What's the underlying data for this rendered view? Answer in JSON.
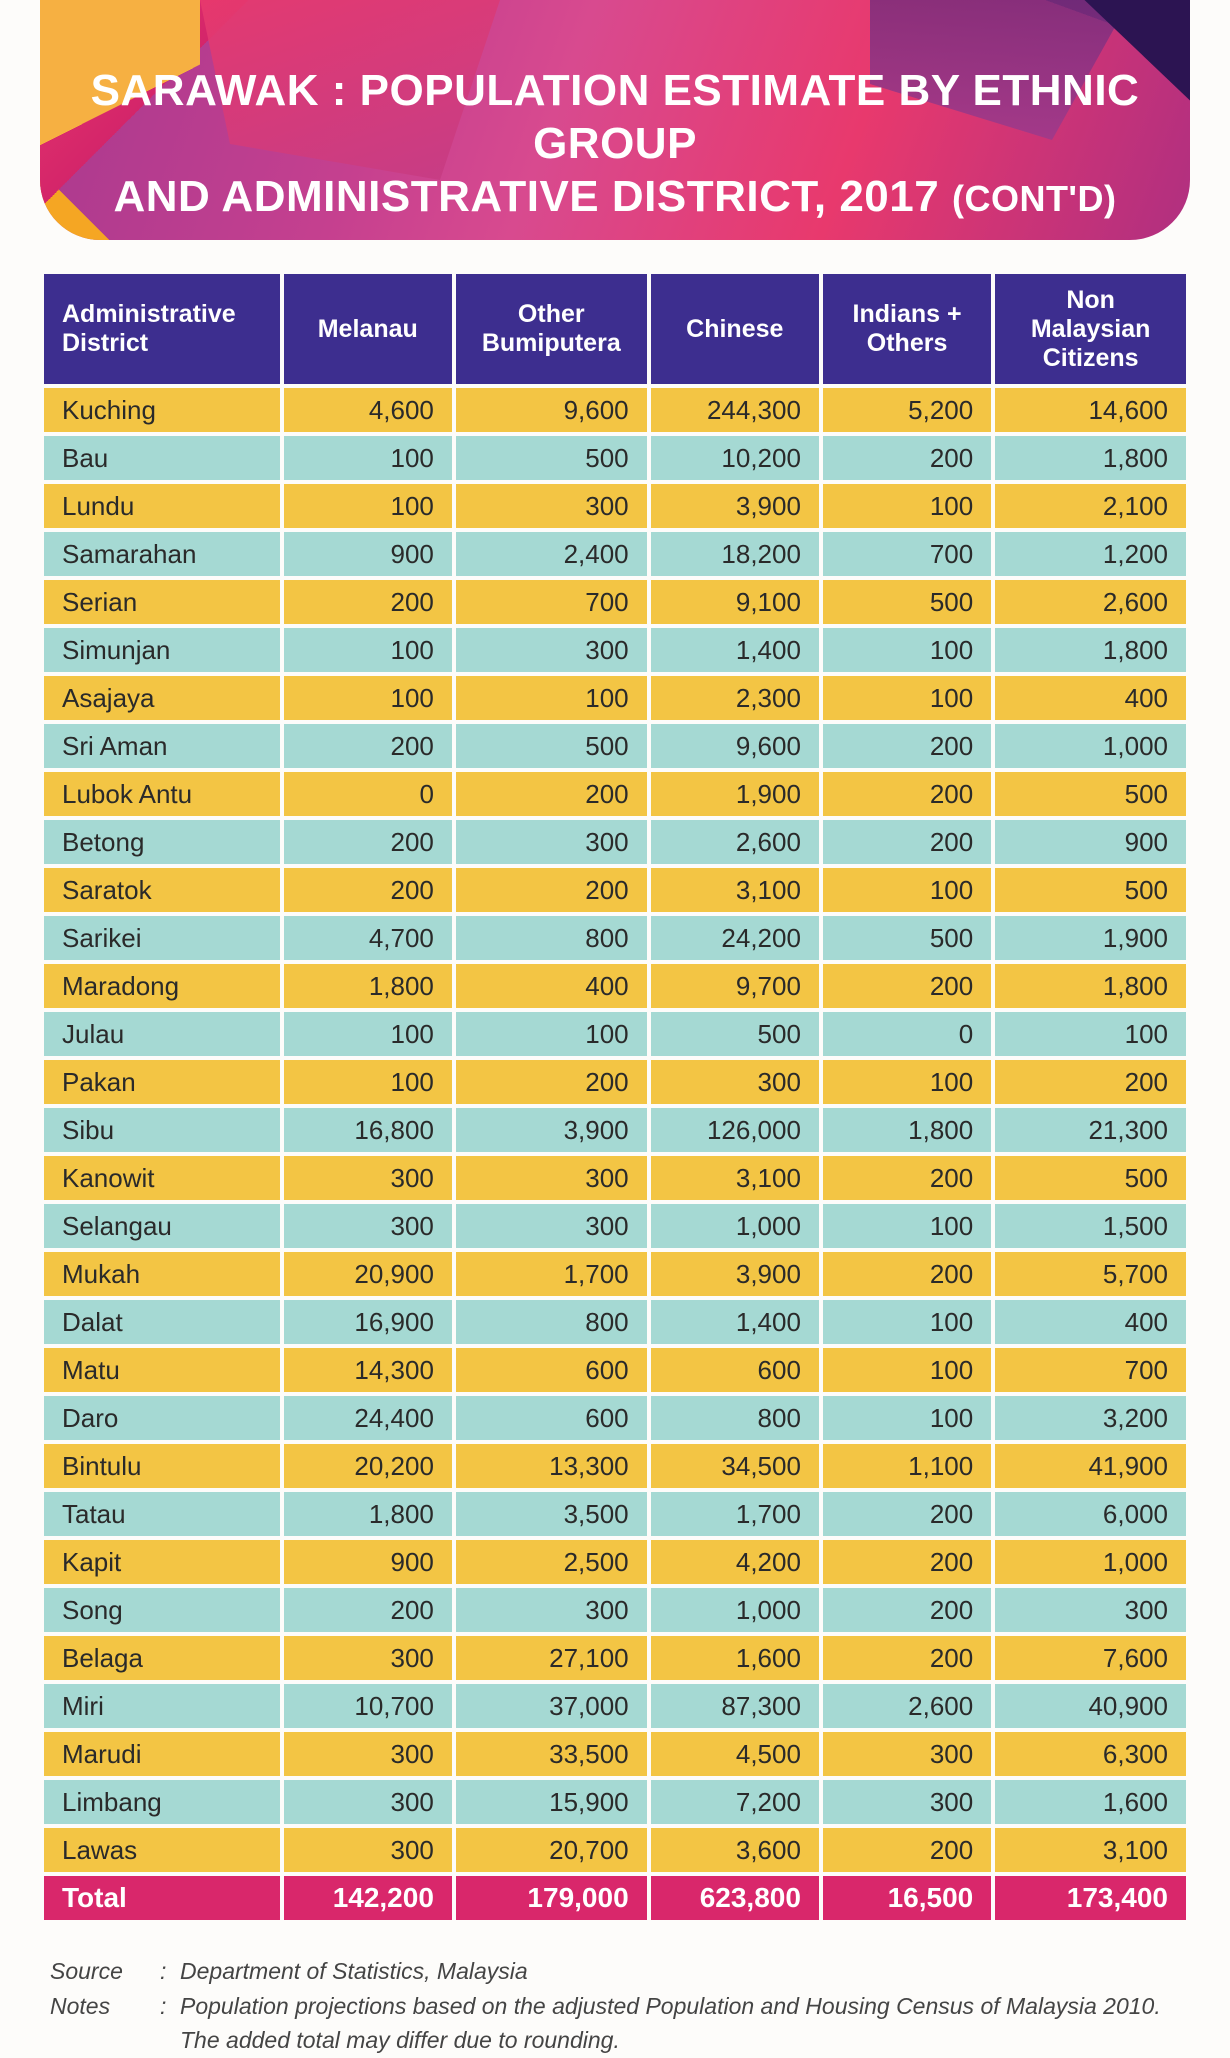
{
  "title": {
    "line1": "SARAWAK : POPULATION ESTIMATE BY ETHNIC GROUP",
    "line2_a": "AND ADMINISTRATIVE DISTRICT, 2017",
    "line2_b": "(CONT'D)"
  },
  "colors": {
    "header_bg": "#3d2e8f",
    "row_odd": "#f3c544",
    "row_even": "#a5d9d3",
    "total_bg": "#d9276b",
    "banner_gradient_from": "#c5408f",
    "banner_gradient_to": "#e8396d"
  },
  "table": {
    "columns": [
      "Administrative District",
      "Melanau",
      "Other Bumiputera",
      "Chinese",
      "Indians + Others",
      "Non Malaysian Citizens"
    ],
    "column_align": [
      "left",
      "right",
      "right",
      "right",
      "right",
      "right"
    ],
    "rows": [
      [
        "Kuching",
        "4,600",
        "9,600",
        "244,300",
        "5,200",
        "14,600"
      ],
      [
        "Bau",
        "100",
        "500",
        "10,200",
        "200",
        "1,800"
      ],
      [
        "Lundu",
        "100",
        "300",
        "3,900",
        "100",
        "2,100"
      ],
      [
        "Samarahan",
        "900",
        "2,400",
        "18,200",
        "700",
        "1,200"
      ],
      [
        "Serian",
        "200",
        "700",
        "9,100",
        "500",
        "2,600"
      ],
      [
        "Simunjan",
        "100",
        "300",
        "1,400",
        "100",
        "1,800"
      ],
      [
        "Asajaya",
        "100",
        "100",
        "2,300",
        "100",
        "400"
      ],
      [
        "Sri Aman",
        "200",
        "500",
        "9,600",
        "200",
        "1,000"
      ],
      [
        "Lubok Antu",
        "0",
        "200",
        "1,900",
        "200",
        "500"
      ],
      [
        "Betong",
        "200",
        "300",
        "2,600",
        "200",
        "900"
      ],
      [
        "Saratok",
        "200",
        "200",
        "3,100",
        "100",
        "500"
      ],
      [
        "Sarikei",
        "4,700",
        "800",
        "24,200",
        "500",
        "1,900"
      ],
      [
        "Maradong",
        "1,800",
        "400",
        "9,700",
        "200",
        "1,800"
      ],
      [
        "Julau",
        "100",
        "100",
        "500",
        "0",
        "100"
      ],
      [
        "Pakan",
        "100",
        "200",
        "300",
        "100",
        "200"
      ],
      [
        "Sibu",
        "16,800",
        "3,900",
        "126,000",
        "1,800",
        "21,300"
      ],
      [
        "Kanowit",
        "300",
        "300",
        "3,100",
        "200",
        "500"
      ],
      [
        "Selangau",
        "300",
        "300",
        "1,000",
        "100",
        "1,500"
      ],
      [
        "Mukah",
        "20,900",
        "1,700",
        "3,900",
        "200",
        "5,700"
      ],
      [
        "Dalat",
        "16,900",
        "800",
        "1,400",
        "100",
        "400"
      ],
      [
        "Matu",
        "14,300",
        "600",
        "600",
        "100",
        "700"
      ],
      [
        "Daro",
        "24,400",
        "600",
        "800",
        "100",
        "3,200"
      ],
      [
        "Bintulu",
        "20,200",
        "13,300",
        "34,500",
        "1,100",
        "41,900"
      ],
      [
        "Tatau",
        "1,800",
        "3,500",
        "1,700",
        "200",
        "6,000"
      ],
      [
        "Kapit",
        "900",
        "2,500",
        "4,200",
        "200",
        "1,000"
      ],
      [
        "Song",
        "200",
        "300",
        "1,000",
        "200",
        "300"
      ],
      [
        "Belaga",
        "300",
        "27,100",
        "1,600",
        "200",
        "7,600"
      ],
      [
        "Miri",
        "10,700",
        "37,000",
        "87,300",
        "2,600",
        "40,900"
      ],
      [
        "Marudi",
        "300",
        "33,500",
        "4,500",
        "300",
        "6,300"
      ],
      [
        "Limbang",
        "300",
        "15,900",
        "7,200",
        "300",
        "1,600"
      ],
      [
        "Lawas",
        "300",
        "20,700",
        "3,600",
        "200",
        "3,100"
      ]
    ],
    "total": [
      "Total",
      "142,200",
      "179,000",
      "623,800",
      "16,500",
      "173,400"
    ]
  },
  "footer": {
    "source_label": "Source",
    "source": "Department of Statistics, Malaysia",
    "notes_label": "Notes",
    "notes": "Population projections based on the adjusted Population and Housing Census of Malaysia 2010. The added total may differ due to rounding."
  }
}
